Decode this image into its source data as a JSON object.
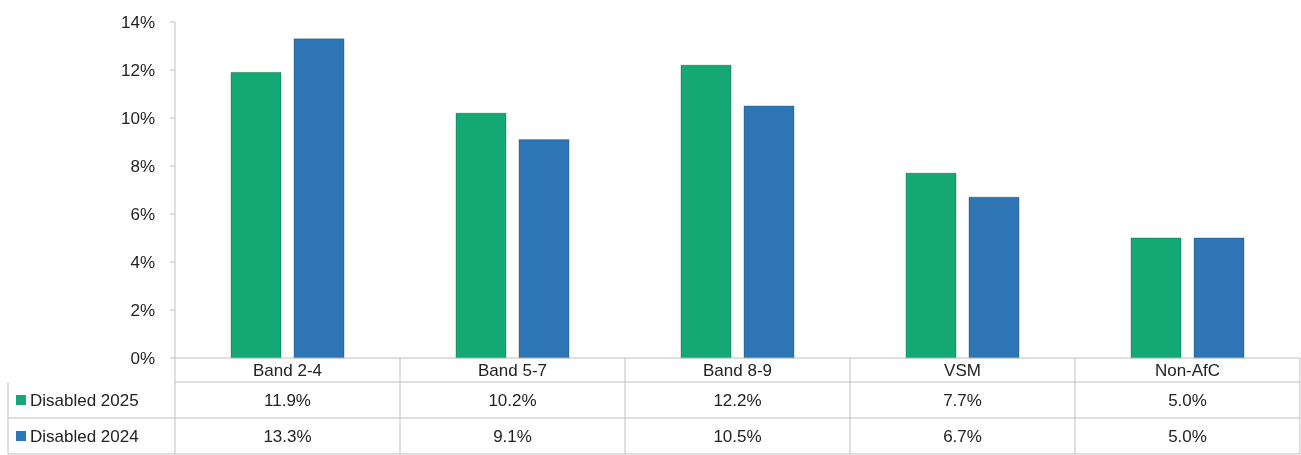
{
  "chart_data": {
    "type": "bar",
    "categories": [
      "Band 2-4",
      "Band 5-7",
      "Band 8-9",
      "VSM",
      "Non-AfC"
    ],
    "series": [
      {
        "name": "Disabled 2025",
        "color": "#13a874",
        "values": [
          11.9,
          10.2,
          12.2,
          7.7,
          5.0
        ],
        "value_labels": [
          "11.9%",
          "10.2%",
          "12.2%",
          "7.7%",
          "5.0%"
        ]
      },
      {
        "name": "Disabled 2024",
        "color": "#2e75b6",
        "values": [
          13.3,
          9.1,
          10.5,
          6.7,
          5.0
        ],
        "value_labels": [
          "13.3%",
          "9.1%",
          "10.5%",
          "6.7%",
          "5.0%"
        ]
      }
    ],
    "ylim": [
      0,
      14
    ],
    "yticks": [
      {
        "value": 0,
        "label": "0%"
      },
      {
        "value": 2,
        "label": "2%"
      },
      {
        "value": 4,
        "label": "4%"
      },
      {
        "value": 6,
        "label": "6%"
      },
      {
        "value": 8,
        "label": "8%"
      },
      {
        "value": 10,
        "label": "10%"
      },
      {
        "value": 12,
        "label": "12%"
      },
      {
        "value": 14,
        "label": "14%"
      }
    ],
    "legend": "bottom"
  }
}
